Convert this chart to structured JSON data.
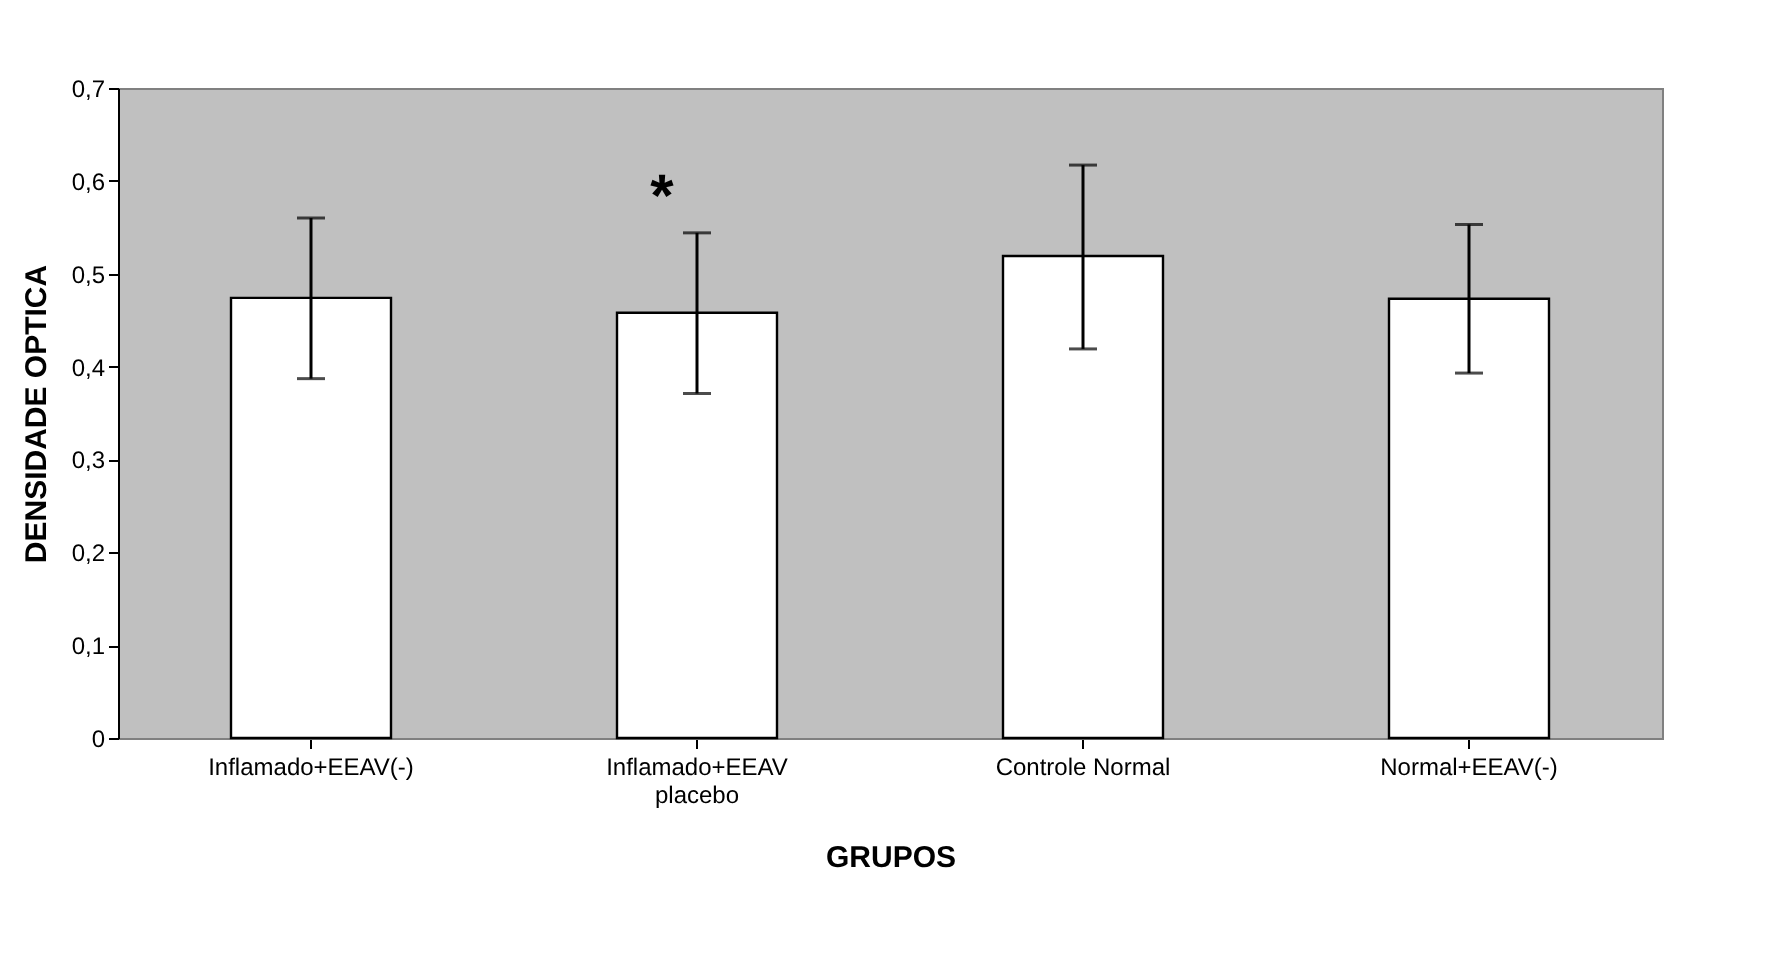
{
  "chart_data": {
    "type": "bar",
    "xlabel": "GRUPOS",
    "ylabel": "DENSIDADE OPTICA",
    "categories": [
      "Inflamado+EEAV(-)",
      "Inflamado+EEAV placebo",
      "Controle Normal",
      "Normal+EEAV(-)"
    ],
    "values": [
      0.474,
      0.458,
      0.519,
      0.473
    ],
    "errors": [
      [
        0.387,
        0.56
      ],
      [
        0.371,
        0.544
      ],
      [
        0.419,
        0.617
      ],
      [
        0.393,
        0.553
      ]
    ],
    "color": "#ffffff",
    "ylim": [
      0,
      0.7
    ],
    "yticks": [
      0,
      {
        "value": 0.1,
        "label": "0,1"
      },
      {
        "value": 0.2,
        "label": "0,2"
      },
      {
        "value": 0.3,
        "label": "0,3"
      },
      {
        "value": 0.4,
        "label": "0,4"
      },
      {
        "value": 0.5,
        "label": "0,5"
      },
      {
        "value": 0.6,
        "label": "0,6"
      },
      {
        "value": 0.7,
        "label": "0,7"
      }
    ],
    "annotations": [
      "*"
    ],
    "grid": false
  }
}
